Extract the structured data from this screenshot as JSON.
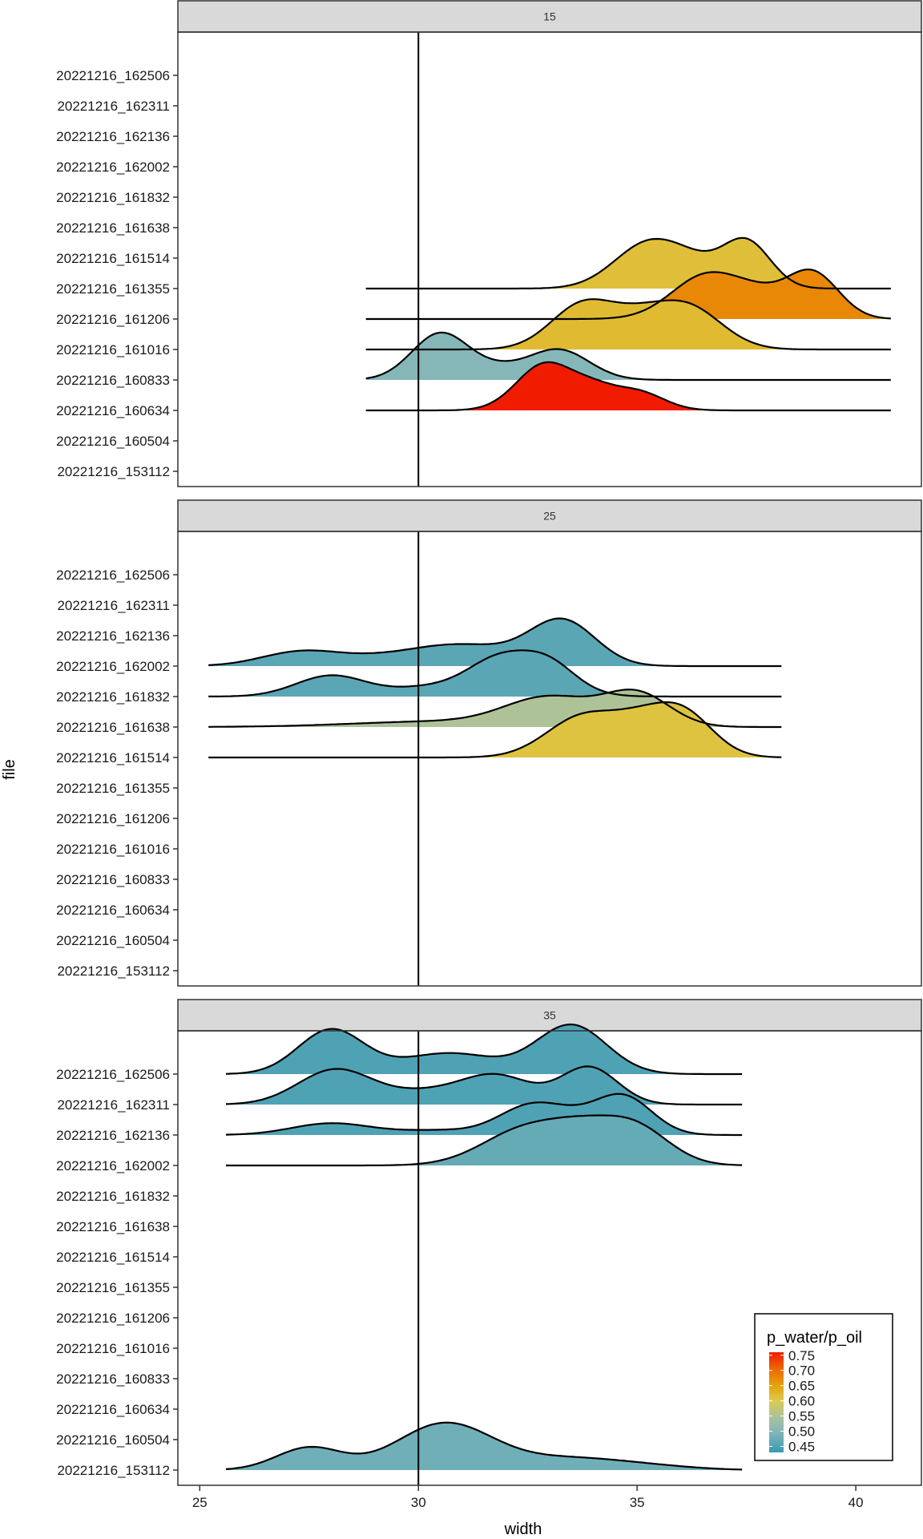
{
  "chart_data": {
    "type": "ridgeline",
    "xlabel": "width",
    "ylabel": "file",
    "xlim": [
      24.5,
      41.5
    ],
    "x_ticks": [
      25,
      30,
      35,
      40
    ],
    "x_tick_labels": [
      "25",
      "30",
      "35",
      "40"
    ],
    "reference_line_x": 30,
    "files": [
      "20221216_162506",
      "20221216_162311",
      "20221216_162136",
      "20221216_162002",
      "20221216_161832",
      "20221216_161638",
      "20221216_161514",
      "20221216_161355",
      "20221216_161206",
      "20221216_161016",
      "20221216_160833",
      "20221216_160634",
      "20221216_160504",
      "20221216_153112"
    ],
    "legend": {
      "title": "p_water/p_oil",
      "position": "bottom-right",
      "ticks": [
        0.75,
        0.7,
        0.65,
        0.6,
        0.55,
        0.5,
        0.45
      ],
      "tick_labels": [
        "0.75",
        "0.70",
        "0.65",
        "0.60",
        "0.55",
        "0.50",
        "0.45"
      ],
      "range": [
        0.43,
        0.76
      ],
      "stops": [
        {
          "value": 0.43,
          "color": "#3A9AB2"
        },
        {
          "value": 0.5,
          "color": "#85B7B9"
        },
        {
          "value": 0.55,
          "color": "#ADC397"
        },
        {
          "value": 0.6,
          "color": "#DCCB4E"
        },
        {
          "value": 0.65,
          "color": "#E5A208"
        },
        {
          "value": 0.7,
          "color": "#ED6E04"
        },
        {
          "value": 0.76,
          "color": "#F11B00"
        }
      ]
    },
    "panels": [
      {
        "label": "15",
        "ridges": [
          {
            "file": "20221216_161355",
            "ratio": 0.615,
            "x_range": [
              28.8,
              40.8
            ],
            "peaks": [
              [
                35.3,
                1.0,
                0.8
              ],
              [
                37.5,
                1.0,
                0.55
              ],
              [
                36.4,
                0.3,
                0.6
              ]
            ]
          },
          {
            "file": "20221216_161206",
            "ratio": 0.675,
            "x_range": [
              28.8,
              40.8
            ],
            "peaks": [
              [
                36.6,
                0.95,
                0.8
              ],
              [
                39.0,
                1.0,
                0.6
              ],
              [
                37.8,
                0.35,
                0.6
              ]
            ]
          },
          {
            "file": "20221216_161016",
            "ratio": 0.62,
            "x_range": [
              28.8,
              40.8
            ],
            "peaks": [
              [
                33.8,
                1.0,
                0.75
              ],
              [
                36.1,
                0.95,
                0.8
              ],
              [
                35.0,
                0.35,
                0.6
              ]
            ]
          },
          {
            "file": "20221216_160833",
            "ratio": 0.5,
            "x_range": [
              28.8,
              40.8
            ],
            "peaks": [
              [
                30.5,
                1.0,
                0.65
              ],
              [
                33.2,
                0.65,
                0.7
              ],
              [
                31.8,
                0.2,
                0.6
              ]
            ]
          },
          {
            "file": "20221216_160634",
            "ratio": 0.76,
            "x_range": [
              28.8,
              40.8
            ],
            "peaks": [
              [
                32.9,
                1.0,
                0.65
              ],
              [
                35.0,
                0.4,
                0.6
              ],
              [
                34.0,
                0.35,
                0.5
              ]
            ]
          }
        ]
      },
      {
        "label": "25",
        "ridges": [
          {
            "file": "20221216_162002",
            "ratio": 0.46,
            "x_range": [
              25.2,
              38.3
            ],
            "peaks": [
              [
                27.3,
                0.3,
                0.9
              ],
              [
                29.0,
                0.12,
                1.0
              ],
              [
                31.0,
                0.45,
                1.2
              ],
              [
                33.3,
                0.95,
                0.75
              ]
            ]
          },
          {
            "file": "20221216_161832",
            "ratio": 0.46,
            "x_range": [
              25.2,
              38.3
            ],
            "peaks": [
              [
                28.0,
                0.45,
                0.8
              ],
              [
                30.3,
                0.2,
                0.9
              ],
              [
                31.8,
                0.6,
                0.7
              ],
              [
                33.0,
                0.45,
                0.6
              ],
              [
                32.6,
                0.3,
                0.9
              ]
            ]
          },
          {
            "file": "20221216_161638",
            "ratio": 0.55,
            "x_range": [
              25.2,
              38.3
            ],
            "peaks": [
              [
                30.5,
                0.12,
                2.0
              ],
              [
                33.0,
                0.6,
                1.0
              ],
              [
                35.0,
                0.7,
                0.75
              ]
            ]
          },
          {
            "file": "20221216_161514",
            "ratio": 0.61,
            "x_range": [
              25.2,
              38.3
            ],
            "peaks": [
              [
                33.8,
                0.9,
                0.85
              ],
              [
                36.0,
                1.0,
                0.7
              ],
              [
                35.0,
                0.4,
                0.6
              ]
            ]
          }
        ]
      },
      {
        "label": "35",
        "ridges": [
          {
            "file": "20221216_162506",
            "ratio": 0.45,
            "x_range": [
              25.6,
              37.4
            ],
            "peaks": [
              [
                28.0,
                0.95,
                0.75
              ],
              [
                30.7,
                0.45,
                1.1
              ],
              [
                33.5,
                1.05,
                0.8
              ]
            ]
          },
          {
            "file": "20221216_162311",
            "ratio": 0.45,
            "x_range": [
              25.6,
              37.4
            ],
            "peaks": [
              [
                28.1,
                0.75,
                0.85
              ],
              [
                30.2,
                0.25,
                0.9
              ],
              [
                31.8,
                0.6,
                0.8
              ],
              [
                33.9,
                0.8,
                0.65
              ]
            ]
          },
          {
            "file": "20221216_162136",
            "ratio": 0.45,
            "x_range": [
              25.6,
              37.4
            ],
            "peaks": [
              [
                28.0,
                0.25,
                0.9
              ],
              [
                30.5,
                0.1,
                1.0
              ],
              [
                32.5,
                0.55,
                0.7
              ],
              [
                34.7,
                0.8,
                0.65
              ],
              [
                33.5,
                0.3,
                0.7
              ]
            ]
          },
          {
            "file": "20221216_162002",
            "ratio": 0.47,
            "x_range": [
              25.6,
              37.4
            ],
            "peaks": [
              [
                32.5,
                0.8,
                1.0
              ],
              [
                34.9,
                0.85,
                0.8
              ],
              [
                33.7,
                0.4,
                0.7
              ]
            ]
          },
          {
            "file": "20221216_153112",
            "ratio": 0.48,
            "x_range": [
              25.6,
              37.4
            ],
            "peaks": [
              [
                27.5,
                0.48,
                0.75
              ],
              [
                30.6,
                1.0,
                1.1
              ],
              [
                33.5,
                0.25,
                1.3
              ],
              [
                35.5,
                0.05,
                1.0
              ]
            ]
          }
        ]
      }
    ]
  }
}
